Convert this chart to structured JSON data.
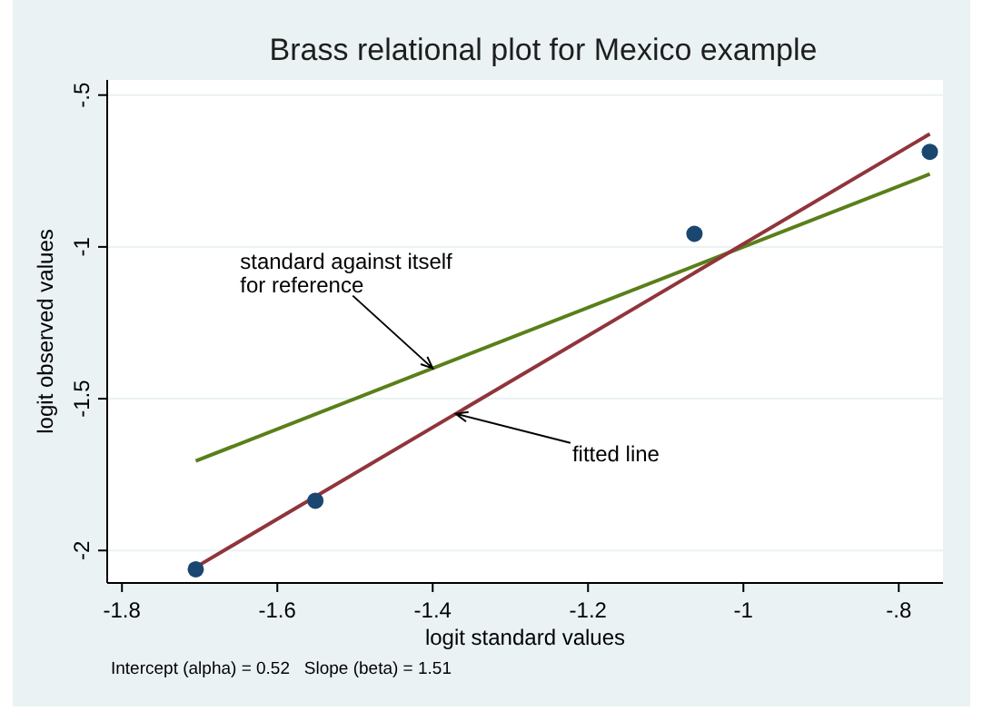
{
  "chart_data": {
    "type": "scatter",
    "title": "Brass relational plot for Mexico example",
    "xlabel": "logit standard values",
    "ylabel": "logit observed values",
    "xlim": [
      -1.819,
      -0.743
    ],
    "ylim": [
      -2.107,
      -0.45
    ],
    "xticks": [
      -1.8,
      -1.6,
      -1.4,
      -1.2,
      -1,
      {
        "value": -0.8,
        "label": "-.8"
      }
    ],
    "yticks": [
      -2,
      -1.5,
      -1,
      {
        "value": -0.5,
        "label": "-.5"
      }
    ],
    "grid": "y",
    "series": [
      {
        "marker": "circle",
        "color": "#1a476f",
        "x": [
          -1.705,
          -1.551,
          -1.063,
          -0.76
        ],
        "values": [
          -2.062,
          -1.836,
          -0.957,
          -0.687
        ]
      },
      {
        "type": "line",
        "color": "#5a7f1a",
        "x": [
          -1.705,
          -0.76
        ],
        "values": [
          -1.705,
          -0.76
        ]
      },
      {
        "type": "line",
        "color": "#90353b",
        "x": [
          -1.705,
          -0.76
        ],
        "values": [
          -2.055,
          -0.628
        ]
      }
    ],
    "annotations": [
      {
        "text": "standard against itself\nfor reference",
        "x": -1.4,
        "y": -1.4
      },
      {
        "text": "fitted line",
        "x": -1.37,
        "y": -1.55
      },
      "Intercept (alpha) = 0.52   Slope (beta) = 1.51"
    ]
  }
}
